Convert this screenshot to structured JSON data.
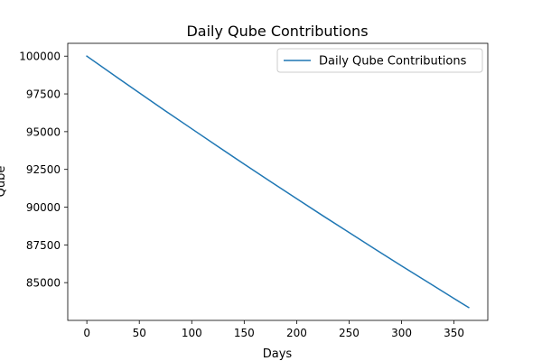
{
  "chart_data": {
    "type": "line",
    "title": "Daily Qube Contributions",
    "xlabel": "Days",
    "ylabel": "Qube",
    "xlim": [
      -18.2,
      382.2
    ],
    "ylim": [
      82500,
      100850
    ],
    "x_ticks": [
      0,
      50,
      100,
      150,
      200,
      250,
      300,
      350
    ],
    "y_ticks": [
      85000,
      87500,
      90000,
      92500,
      95000,
      97500,
      100000
    ],
    "grid": false,
    "legend_position": "top-right",
    "series": [
      {
        "name": "Daily Qube Contributions",
        "color": "#1f77b4",
        "x": [
          0,
          25,
          50,
          75,
          100,
          125,
          150,
          175,
          200,
          225,
          250,
          275,
          300,
          325,
          350,
          364
        ],
        "y": [
          100000,
          98780,
          97570,
          96370,
          95190,
          94010,
          92850,
          91700,
          90560,
          89430,
          88320,
          87210,
          86110,
          85030,
          83950,
          83350
        ]
      }
    ]
  }
}
